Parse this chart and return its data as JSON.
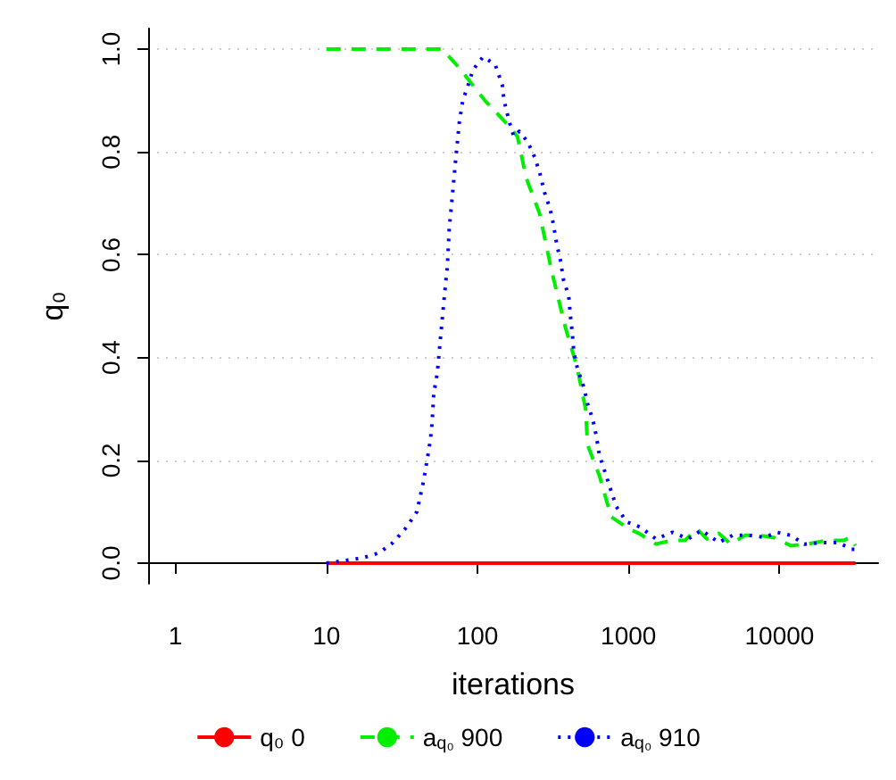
{
  "chart_data": {
    "type": "line",
    "xlabel": "iterations",
    "ylabel": "q₀",
    "log": "x",
    "grid": "y",
    "legend": "bottom",
    "marker": "none",
    "xlim": [
      0.66,
      45000
    ],
    "xticks": [
      1,
      10,
      100,
      1000,
      10000
    ],
    "ylim": [
      -0.04,
      1.04
    ],
    "yticks": [
      {
        "value": 0,
        "label": "0.0"
      },
      {
        "value": 0.2,
        "label": "0.2"
      },
      {
        "value": 0.4,
        "label": "0.4"
      },
      {
        "value": 0.6,
        "label": "0.6"
      },
      {
        "value": 0.8,
        "label": "0.8"
      },
      {
        "value": 1,
        "label": "1.0"
      }
    ],
    "series": [
      {
        "name": "q₀ 0",
        "color": "#ff0000",
        "line_style": "solid",
        "x": [
          10,
          31800
        ],
        "values": [
          0,
          0
        ]
      },
      {
        "name": "a$_{q₀}$ 900",
        "color": "#00ee00",
        "line_style": "dashed",
        "x": [
          10,
          30,
          58.5,
          76,
          112,
          162,
          184,
          210,
          258,
          309,
          381,
          458,
          520,
          536,
          642,
          768,
          1000,
          1170,
          1520,
          1910,
          2360,
          2830,
          3310,
          3960,
          4760,
          5890,
          7220,
          9120,
          11900,
          15300,
          20500,
          26600,
          29300,
          31800
        ],
        "values": [
          1,
          1,
          1,
          0.963,
          0.9,
          0.85,
          0.83,
          0.75,
          0.68,
          0.57,
          0.46,
          0.38,
          0.3,
          0.23,
          0.17,
          0.09,
          0.067,
          0.058,
          0.037,
          0.044,
          0.044,
          0.067,
          0.047,
          0.058,
          0.037,
          0.054,
          0.054,
          0.05,
          0.034,
          0.037,
          0.044,
          0.044,
          0.05,
          0.034
        ]
      },
      {
        "name": "a$_{q₀}$ 910",
        "color": "#0000ff",
        "line_style": "dotted",
        "x": [
          10,
          13.3,
          17.3,
          22.4,
          27.6,
          34,
          39.7,
          41.8,
          44,
          46.4,
          48.8,
          50,
          51.4,
          54.2,
          57,
          60,
          63.3,
          65,
          68.5,
          72,
          76,
          80,
          86.7,
          93.5,
          109,
          131,
          146,
          150,
          162,
          174,
          189,
          215,
          239,
          258,
          279,
          302,
          318,
          335,
          354,
          372,
          402,
          413,
          424,
          435,
          458,
          509,
          536,
          580,
          610,
          642,
          694,
          768,
          831,
          972,
          1200,
          1520,
          1960,
          2490,
          3050,
          3960,
          4890,
          6300,
          8000,
          9600,
          11900,
          14600,
          19000,
          24500,
          30000,
          33400
        ],
        "values": [
          0,
          0.005,
          0.01,
          0.02,
          0.04,
          0.07,
          0.1,
          0.13,
          0.16,
          0.2,
          0.24,
          0.27,
          0.33,
          0.37,
          0.44,
          0.51,
          0.58,
          0.65,
          0.72,
          0.79,
          0.86,
          0.9,
          0.93,
          0.96,
          0.985,
          0.97,
          0.93,
          0.9,
          0.86,
          0.83,
          0.84,
          0.82,
          0.79,
          0.76,
          0.72,
          0.69,
          0.66,
          0.62,
          0.59,
          0.55,
          0.52,
          0.48,
          0.45,
          0.41,
          0.38,
          0.34,
          0.31,
          0.28,
          0.25,
          0.21,
          0.18,
          0.14,
          0.11,
          0.08,
          0.07,
          0.047,
          0.06,
          0.047,
          0.064,
          0.04,
          0.054,
          0.054,
          0.05,
          0.06,
          0.054,
          0.037,
          0.04,
          0.04,
          0.027,
          0.027
        ]
      }
    ]
  }
}
